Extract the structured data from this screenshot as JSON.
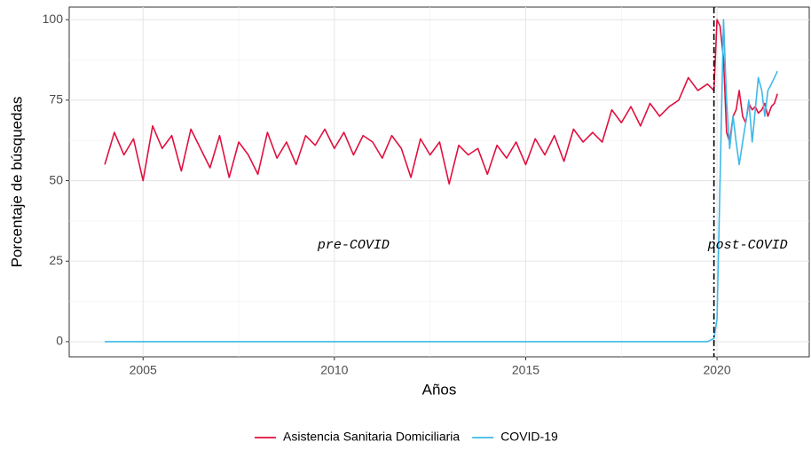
{
  "chart_data": {
    "type": "line",
    "x_label": "Años",
    "y_label": "Porcentaje de búsquedas",
    "x": [
      2004,
      2004.25,
      2004.5,
      2004.75,
      2005,
      2005.25,
      2005.5,
      2005.75,
      2006,
      2006.25,
      2006.5,
      2006.75,
      2007,
      2007.25,
      2007.5,
      2007.75,
      2008,
      2008.25,
      2008.5,
      2008.75,
      2009,
      2009.25,
      2009.5,
      2009.75,
      2010,
      2010.25,
      2010.5,
      2010.75,
      2011,
      2011.25,
      2011.5,
      2011.75,
      2012,
      2012.25,
      2012.5,
      2012.75,
      2013,
      2013.25,
      2013.5,
      2013.75,
      2014,
      2014.25,
      2014.5,
      2014.75,
      2015,
      2015.25,
      2015.5,
      2015.75,
      2016,
      2016.25,
      2016.5,
      2016.75,
      2017,
      2017.25,
      2017.5,
      2017.75,
      2018,
      2018.25,
      2018.5,
      2018.75,
      2019,
      2019.25,
      2019.5,
      2019.75,
      2019.92,
      2020,
      2020.08,
      2020.17,
      2020.25,
      2020.33,
      2020.42,
      2020.5,
      2020.58,
      2020.67,
      2020.75,
      2020.83,
      2020.92,
      2021,
      2021.08,
      2021.17,
      2021.25,
      2021.33,
      2021.42,
      2021.5,
      2021.58
    ],
    "series": [
      {
        "name": "Asistencia Sanitaria Domiciliaria",
        "color": "#e0103f",
        "values": [
          55,
          65,
          58,
          63,
          50,
          67,
          60,
          64,
          53,
          66,
          60,
          54,
          64,
          51,
          62,
          58,
          52,
          65,
          57,
          62,
          55,
          64,
          61,
          66,
          60,
          65,
          58,
          64,
          62,
          57,
          64,
          60,
          51,
          63,
          58,
          62,
          49,
          61,
          58,
          60,
          52,
          61,
          57,
          62,
          55,
          63,
          58,
          64,
          56,
          66,
          62,
          65,
          62,
          72,
          68,
          73,
          67,
          74,
          70,
          73,
          75,
          82,
          78,
          80,
          78,
          100,
          98,
          88,
          65,
          62,
          70,
          72,
          78,
          70,
          68,
          74,
          72,
          73,
          71,
          72,
          74,
          70,
          73,
          74,
          77
        ]
      },
      {
        "name": "COVID-19",
        "color": "#3fb8e8",
        "values": [
          0,
          0,
          0,
          0,
          0,
          0,
          0,
          0,
          0,
          0,
          0,
          0,
          0,
          0,
          0,
          0,
          0,
          0,
          0,
          0,
          0,
          0,
          0,
          0,
          0,
          0,
          0,
          0,
          0,
          0,
          0,
          0,
          0,
          0,
          0,
          0,
          0,
          0,
          0,
          0,
          0,
          0,
          0,
          0,
          0,
          0,
          0,
          0,
          0,
          0,
          0,
          0,
          0,
          0,
          0,
          0,
          0,
          0,
          0,
          0,
          0,
          0,
          0,
          0,
          1,
          7,
          50,
          100,
          75,
          60,
          70,
          62,
          55,
          62,
          68,
          75,
          62,
          72,
          82,
          78,
          70,
          78,
          80,
          82,
          84
        ]
      }
    ],
    "xlim": [
      2003.07,
      2022.41
    ],
    "xticks": [
      2005,
      2010,
      2015,
      2020
    ],
    "ylim": [
      -4.7,
      103.9
    ],
    "yticks": [
      0,
      25,
      50,
      75,
      100
    ],
    "grid": true,
    "vline": 2019.92,
    "annotations": [
      {
        "text": "pre-COVID",
        "x": 2010.5,
        "y": 30
      },
      {
        "text": "post-COVID",
        "x": 2020.8,
        "y": 30
      }
    ],
    "legend": "bottom"
  }
}
